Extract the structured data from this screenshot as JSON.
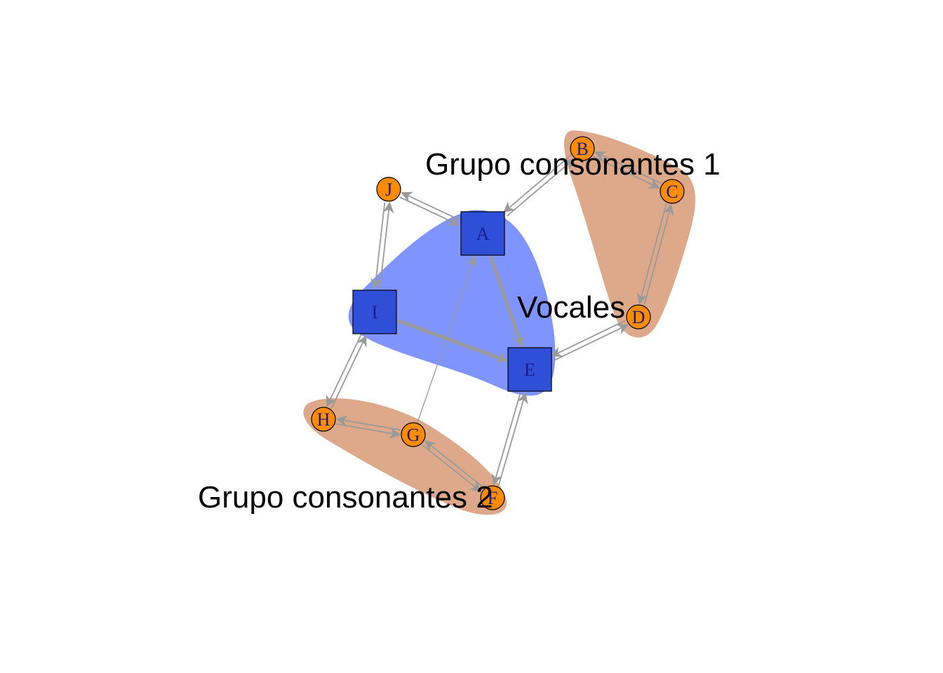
{
  "colors": {
    "vowel_fill": "#2f4fd8",
    "consonant_fill": "#ff8c00",
    "vowel_group": "#8094ff",
    "consonant_group": "#dea88a",
    "edge": "#9a9a9a"
  },
  "groups": [
    {
      "id": "vowels",
      "label": "Vocales",
      "members": [
        "A",
        "E",
        "I"
      ],
      "color": "#8094ff"
    },
    {
      "id": "cons1",
      "label": "Grupo consonantes 1",
      "members": [
        "B",
        "C",
        "D"
      ],
      "color": "#dea88a"
    },
    {
      "id": "cons2",
      "label": "Grupo consonantes 2",
      "members": [
        "H",
        "G",
        "F"
      ],
      "color": "#dea88a"
    }
  ],
  "nodes": [
    {
      "id": "A",
      "label": "A",
      "shape": "square"
    },
    {
      "id": "E",
      "label": "E",
      "shape": "square"
    },
    {
      "id": "I",
      "label": "I",
      "shape": "square"
    },
    {
      "id": "B",
      "label": "B",
      "shape": "circle"
    },
    {
      "id": "C",
      "label": "C",
      "shape": "circle"
    },
    {
      "id": "D",
      "label": "D",
      "shape": "circle"
    },
    {
      "id": "F",
      "label": "F",
      "shape": "circle"
    },
    {
      "id": "G",
      "label": "G",
      "shape": "circle"
    },
    {
      "id": "H",
      "label": "H",
      "shape": "circle"
    },
    {
      "id": "J",
      "label": "J",
      "shape": "circle"
    }
  ],
  "edges": [
    {
      "from": "A",
      "to": "E",
      "weight": "heavy"
    },
    {
      "from": "I",
      "to": "E",
      "weight": "heavy"
    },
    {
      "from": "G",
      "to": "A",
      "weight": "thin"
    },
    {
      "from": "A",
      "to": "B",
      "weight": "normal"
    },
    {
      "from": "B",
      "to": "A",
      "weight": "normal"
    },
    {
      "from": "B",
      "to": "C",
      "weight": "normal"
    },
    {
      "from": "C",
      "to": "B",
      "weight": "normal"
    },
    {
      "from": "C",
      "to": "D",
      "weight": "normal"
    },
    {
      "from": "D",
      "to": "C",
      "weight": "normal"
    },
    {
      "from": "D",
      "to": "E",
      "weight": "normal"
    },
    {
      "from": "E",
      "to": "D",
      "weight": "normal"
    },
    {
      "from": "E",
      "to": "F",
      "weight": "normal"
    },
    {
      "from": "F",
      "to": "E",
      "weight": "normal"
    },
    {
      "from": "F",
      "to": "G",
      "weight": "normal"
    },
    {
      "from": "G",
      "to": "F",
      "weight": "normal"
    },
    {
      "from": "G",
      "to": "H",
      "weight": "normal"
    },
    {
      "from": "H",
      "to": "G",
      "weight": "normal"
    },
    {
      "from": "H",
      "to": "I",
      "weight": "normal"
    },
    {
      "from": "I",
      "to": "H",
      "weight": "normal"
    },
    {
      "from": "I",
      "to": "J",
      "weight": "normal"
    },
    {
      "from": "J",
      "to": "I",
      "weight": "normal"
    },
    {
      "from": "J",
      "to": "A",
      "weight": "normal"
    },
    {
      "from": "A",
      "to": "J",
      "weight": "normal"
    }
  ]
}
